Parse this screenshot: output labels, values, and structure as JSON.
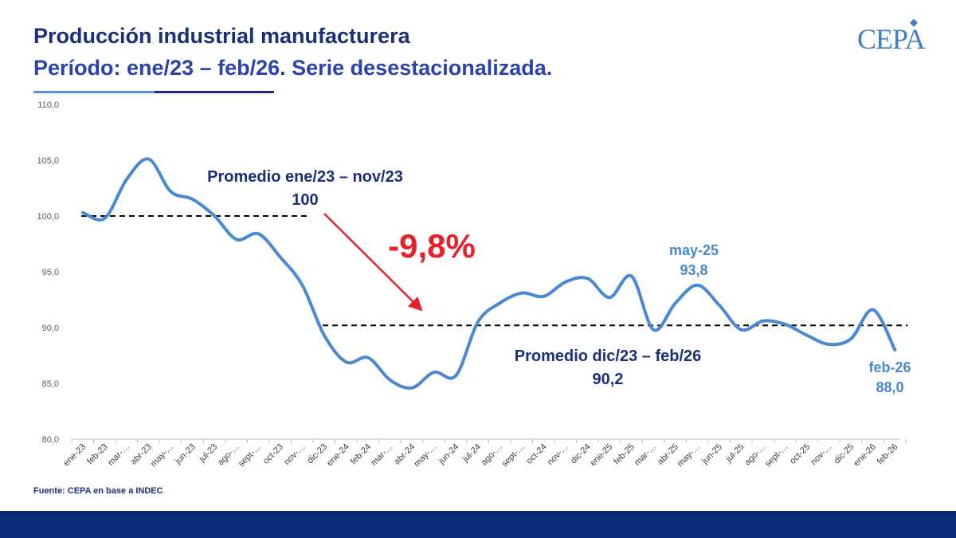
{
  "header": {
    "title": "Producción industrial manufacturera",
    "subtitle": "Período: ene/23 – feb/26. Serie desestacionalizada."
  },
  "logo": {
    "text": "CEPA"
  },
  "footer": {
    "source": "Fuente: CEPA en base a INDEC"
  },
  "colors": {
    "series": "#4a89d0",
    "title": "#1a2f7a",
    "annotation_dark": "#1a2f7a",
    "highlight": "#e8202a",
    "footer": "#0c2a7a"
  },
  "chart_data": {
    "type": "line",
    "categories": [
      "ene-23",
      "feb-23",
      "mar-23",
      "abr-23",
      "may-23",
      "jun-23",
      "jul-23",
      "ago-23",
      "sept-23",
      "oct-23",
      "nov-23",
      "dic-23",
      "ene-24",
      "feb-24",
      "mar-24",
      "abr-24",
      "may-24",
      "jun-24",
      "jul-24",
      "ago-24",
      "sept-24",
      "oct-24",
      "nov-24",
      "dic-24",
      "ene-25",
      "feb-25",
      "mar-25",
      "abr-25",
      "may-25",
      "jun-25",
      "jul-25",
      "ago-25",
      "sept-25",
      "oct-25",
      "nov-25",
      "dic-25",
      "ene-26",
      "feb-26"
    ],
    "tick_labels": [
      "ene-23",
      "feb-23",
      "mar-…",
      "abr-23",
      "may-…",
      "jun-23",
      "jul-23",
      "ago-…",
      "sept-…",
      "oct-23",
      "nov-…",
      "dic-23",
      "ene-24",
      "feb-24",
      "mar-…",
      "abr-24",
      "may-…",
      "jun-24",
      "jul-24",
      "ago-…",
      "sept-…",
      "oct-24",
      "nov-…",
      "dic-24",
      "ene-25",
      "feb-25",
      "mar-…",
      "abr-25",
      "may-…",
      "jun-25",
      "jul-25",
      "ago-…",
      "sept-…",
      "oct-25",
      "nov-…",
      "dic-25",
      "ene-26",
      "feb-26"
    ],
    "series": [
      {
        "values": [
          100.3,
          99.8,
          103.3,
          105.1,
          102.2,
          101.5,
          100.0,
          97.9,
          98.4,
          96.3,
          93.8,
          89.3,
          86.9,
          87.3,
          85.3,
          84.6,
          86.0,
          85.7,
          90.5,
          92.2,
          93.1,
          92.8,
          94.1,
          94.4,
          92.7,
          94.6,
          89.8,
          92.2,
          93.8,
          92.0,
          89.8,
          90.6,
          90.3,
          89.3,
          88.5,
          89.0,
          91.6,
          88.0
        ]
      }
    ],
    "yticks": [
      "80,0",
      "85,0",
      "90,0",
      "95,0",
      "100,0",
      "105,0",
      "110,0"
    ],
    "ylim": [
      80,
      110
    ],
    "reference_lines": [
      {
        "label": "Promedio ene/23 – nov/23",
        "value_label": "100",
        "value": 100,
        "from": "ene-23",
        "to": "nov-23"
      },
      {
        "label": "Promedio dic/23 – feb/26",
        "value_label": "90,2",
        "value": 90.2,
        "from": "dic-23",
        "to": "feb-26"
      }
    ],
    "change_label": "-9,8%",
    "point_labels": [
      {
        "category": "may-25",
        "name": "may-25",
        "value_label": "93,8"
      },
      {
        "category": "feb-26",
        "name": "feb-26",
        "value_label": "88,0"
      }
    ],
    "grid": false,
    "legend": "none"
  }
}
